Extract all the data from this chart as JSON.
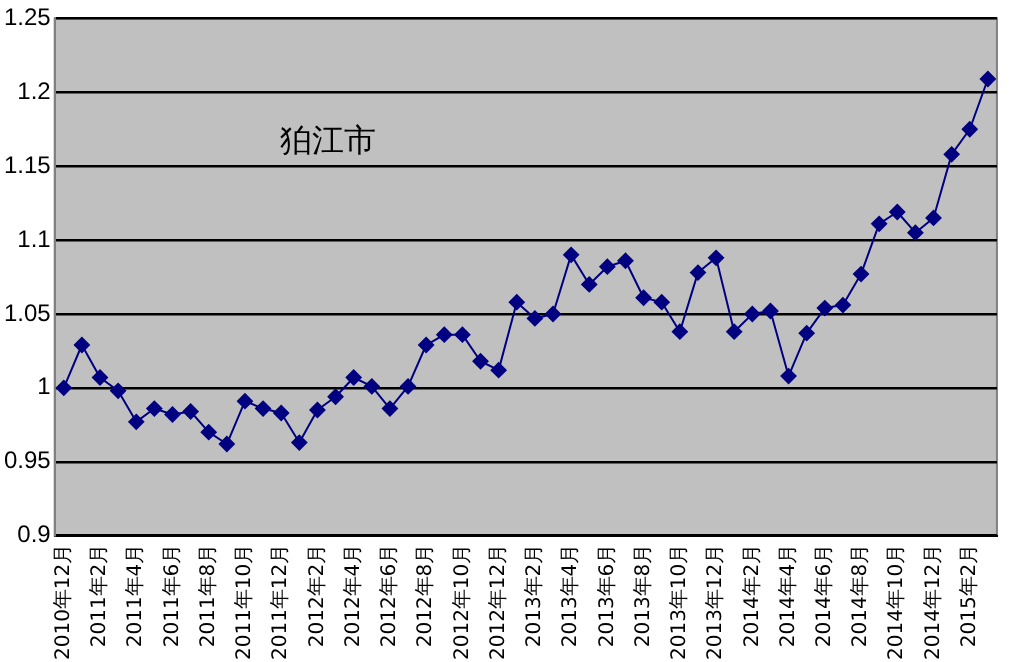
{
  "chart_data": {
    "type": "line",
    "title": "狛江市",
    "categories": [
      "2010年12月",
      null,
      "2011年2月",
      null,
      "2011年4月",
      null,
      "2011年6月",
      null,
      "2011年8月",
      null,
      "2011年10月",
      null,
      "2011年12月",
      null,
      "2012年2月",
      null,
      "2012年4月",
      null,
      "2012年6月",
      null,
      "2012年8月",
      null,
      "2012年10月",
      null,
      "2012年12月",
      null,
      "2013年2月",
      null,
      "2013年4月",
      null,
      "2013年6月",
      null,
      "2013年8月",
      null,
      "2013年10月",
      null,
      "2013年12月",
      null,
      "2014年2月",
      null,
      "2014年4月",
      null,
      "2014年6月",
      null,
      "2014年8月",
      null,
      "2014年10月",
      null,
      "2014年12月",
      null,
      "2015年2月",
      null
    ],
    "series": [
      {
        "color": "#000080",
        "values": [
          1.0,
          1.029,
          1.007,
          0.998,
          0.977,
          0.986,
          0.982,
          0.984,
          0.97,
          0.962,
          0.991,
          0.986,
          0.983,
          0.963,
          0.985,
          0.994,
          1.007,
          1.001,
          0.986,
          1.001,
          1.029,
          1.036,
          1.036,
          1.018,
          1.012,
          1.058,
          1.047,
          1.05,
          1.09,
          1.07,
          1.082,
          1.086,
          1.061,
          1.058,
          1.038,
          1.078,
          1.088,
          1.038,
          1.05,
          1.052,
          1.008,
          1.037,
          1.054,
          1.056,
          1.077,
          1.111,
          1.119,
          1.105,
          1.115,
          1.158,
          1.175,
          1.209
        ]
      }
    ],
    "ylim": [
      0.9,
      1.25
    ],
    "yticks": [
      {
        "value": 0.9,
        "label": "0.9"
      },
      0.95,
      1,
      1.05,
      1.1,
      1.15,
      1.2,
      1.25
    ],
    "grid": "y",
    "legend": false,
    "marker": "diamond",
    "line_style": "solid"
  }
}
